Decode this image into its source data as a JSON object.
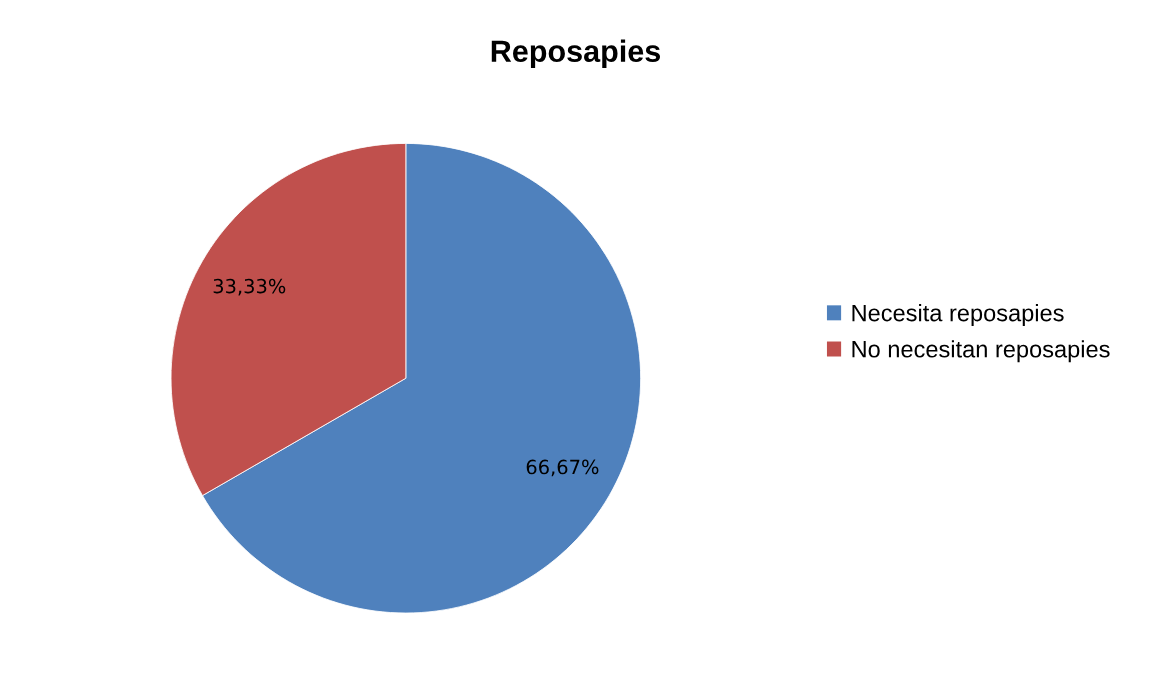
{
  "chart_data": {
    "type": "pie",
    "title": "Reposapies",
    "categories": [
      "Necesita reposapies",
      "No necesitan reposapies"
    ],
    "values": [
      66.67,
      33.33
    ],
    "colors": [
      "#4f81bd",
      "#c0504d"
    ],
    "value_labels": [
      "66,67%",
      "33,33%"
    ],
    "legend": "right"
  }
}
